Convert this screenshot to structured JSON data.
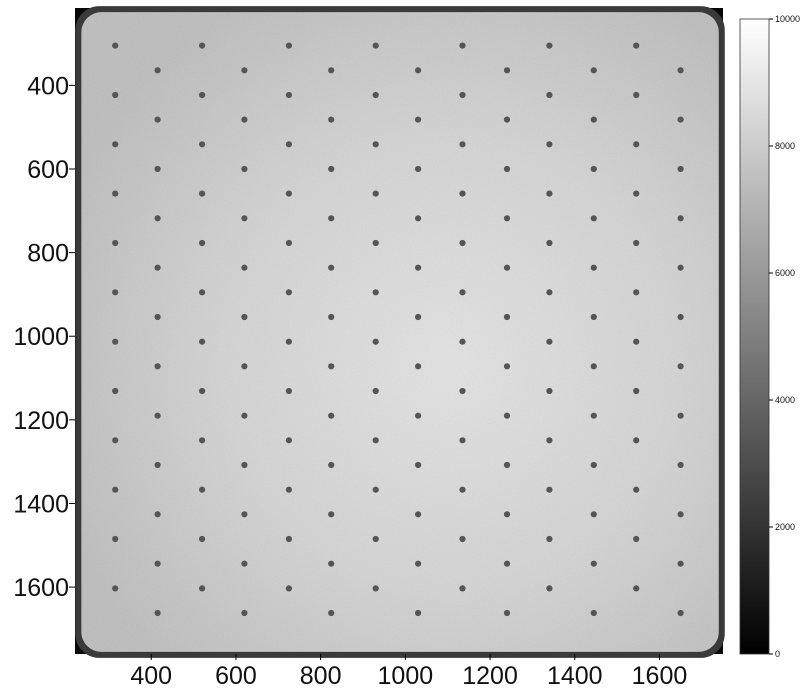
{
  "chart_data": {
    "type": "heatmap",
    "title": "",
    "xlabel": "",
    "ylabel": "",
    "colormap": "gray",
    "x_ticks": [
      "400",
      "600",
      "800",
      "1000",
      "1200",
      "1400",
      "1600"
    ],
    "y_ticks": [
      "400",
      "600",
      "800",
      "1000",
      "1200",
      "1400",
      "1600"
    ],
    "xlim": [
      220,
      1750
    ],
    "ylim": [
      1760,
      215
    ],
    "colorbar": {
      "ticks": [
        "0",
        "2000",
        "4000",
        "6000",
        "8000",
        "10000"
      ],
      "range": [
        0,
        10000
      ]
    },
    "image_content": {
      "description_values": {
        "field_edge": [
          235,
          1740,
          225,
          1755
        ],
        "dot_grid": {
          "x_columns_even_rows": [
            315,
            520,
            725,
            930,
            1135,
            1340,
            1545
          ],
          "x_columns_odd_rows": [
            415,
            620,
            825,
            1030,
            1240,
            1445,
            1650
          ],
          "y_first": 305,
          "y_step": 59,
          "rows": 24
        }
      }
    }
  }
}
